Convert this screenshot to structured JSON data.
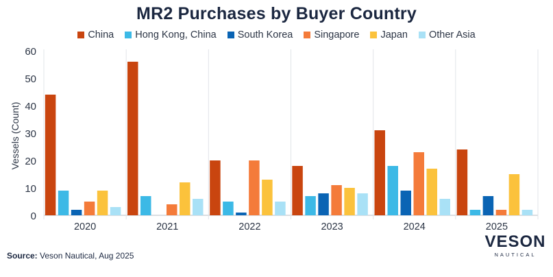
{
  "title": "MR2 Purchases by Buyer Country",
  "source_label": "Source:",
  "source_text": " Veson Nautical, Aug 2025",
  "logo": {
    "main": "VESON",
    "sub": "NAUTICAL"
  },
  "chart_data": {
    "type": "bar",
    "title": "MR2 Purchases by Buyer Country",
    "xlabel": "",
    "ylabel": "Vessels (Count)",
    "ylim": [
      0,
      60
    ],
    "yticks": [
      0,
      10,
      20,
      30,
      40,
      50,
      60
    ],
    "grid": false,
    "legend_position": "top",
    "categories": [
      "2020",
      "2021",
      "2022",
      "2023",
      "2024",
      "2025"
    ],
    "series": [
      {
        "name": "China",
        "color": "#c9450f",
        "values": [
          44,
          56,
          20,
          18,
          31,
          24
        ]
      },
      {
        "name": "Hong Kong, China",
        "color": "#3cb9e6",
        "values": [
          9,
          7,
          5,
          7,
          18,
          2
        ]
      },
      {
        "name": "South Korea",
        "color": "#0a64b4",
        "values": [
          2,
          0,
          1,
          8,
          9,
          7
        ]
      },
      {
        "name": "Singapore",
        "color": "#f47b3a",
        "values": [
          5,
          4,
          20,
          11,
          23,
          2
        ]
      },
      {
        "name": "Japan",
        "color": "#fbc23c",
        "values": [
          9,
          12,
          13,
          10,
          17,
          15
        ]
      },
      {
        "name": "Other Asia",
        "color": "#a9e1f6",
        "values": [
          3,
          6,
          5,
          8,
          6,
          2
        ]
      }
    ]
  }
}
